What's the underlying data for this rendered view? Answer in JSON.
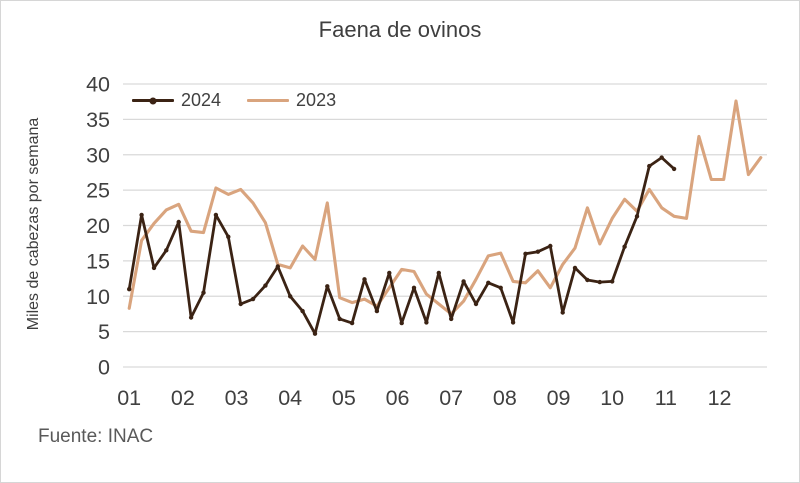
{
  "chart_data": {
    "type": "line",
    "title": "Faena de ovinos",
    "ylabel": "Miles de cabezas por semana",
    "xlabel": "",
    "source": "Fuente: INAC",
    "x_unit": "semana (weekly data)",
    "weeks_per_year": 52,
    "x_tick_labels": [
      "01",
      "02",
      "03",
      "04",
      "05",
      "06",
      "07",
      "08",
      "09",
      "10",
      "11",
      "12"
    ],
    "y_ticks": [
      0,
      5,
      10,
      15,
      20,
      25,
      30,
      35,
      40
    ],
    "ylim": [
      0,
      40
    ],
    "grid": "horizontal",
    "gridline_color": "#d9d9d9",
    "tick_label_color": "#404040",
    "legend_position": "top-left-inside",
    "series": [
      {
        "name": "2023",
        "color": "#d9a47e",
        "marker": false,
        "values": [
          8.3,
          17.9,
          20.3,
          22.2,
          23.0,
          19.2,
          19.0,
          25.3,
          24.4,
          25.1,
          23.2,
          20.4,
          14.5,
          14.0,
          17.1,
          15.2,
          23.2,
          9.8,
          9.1,
          9.6,
          8.6,
          11.2,
          13.8,
          13.5,
          10.3,
          8.9,
          7.5,
          9.3,
          12.4,
          15.7,
          16.1,
          12.1,
          11.9,
          13.6,
          11.2,
          14.5,
          16.8,
          22.5,
          17.4,
          21.0,
          23.7,
          22.0,
          25.1,
          22.5,
          21.3,
          21.0,
          32.6,
          26.5,
          26.5,
          37.6,
          27.2,
          29.6
        ]
      },
      {
        "name": "2024",
        "color": "#3b2314",
        "marker": true,
        "values": [
          11.0,
          21.5,
          14.0,
          16.5,
          20.5,
          7.0,
          10.5,
          21.5,
          18.4,
          8.9,
          9.6,
          11.5,
          14.2,
          10.0,
          7.9,
          4.7,
          11.4,
          6.8,
          6.2,
          12.4,
          7.9,
          13.3,
          6.2,
          11.2,
          6.3,
          13.3,
          6.8,
          12.1,
          8.9,
          11.9,
          11.2,
          6.3,
          16.0,
          16.3,
          17.1,
          7.7,
          14.0,
          12.3,
          12.0,
          12.1,
          17.0,
          21.3,
          28.4,
          29.6,
          28.0
        ]
      }
    ]
  }
}
